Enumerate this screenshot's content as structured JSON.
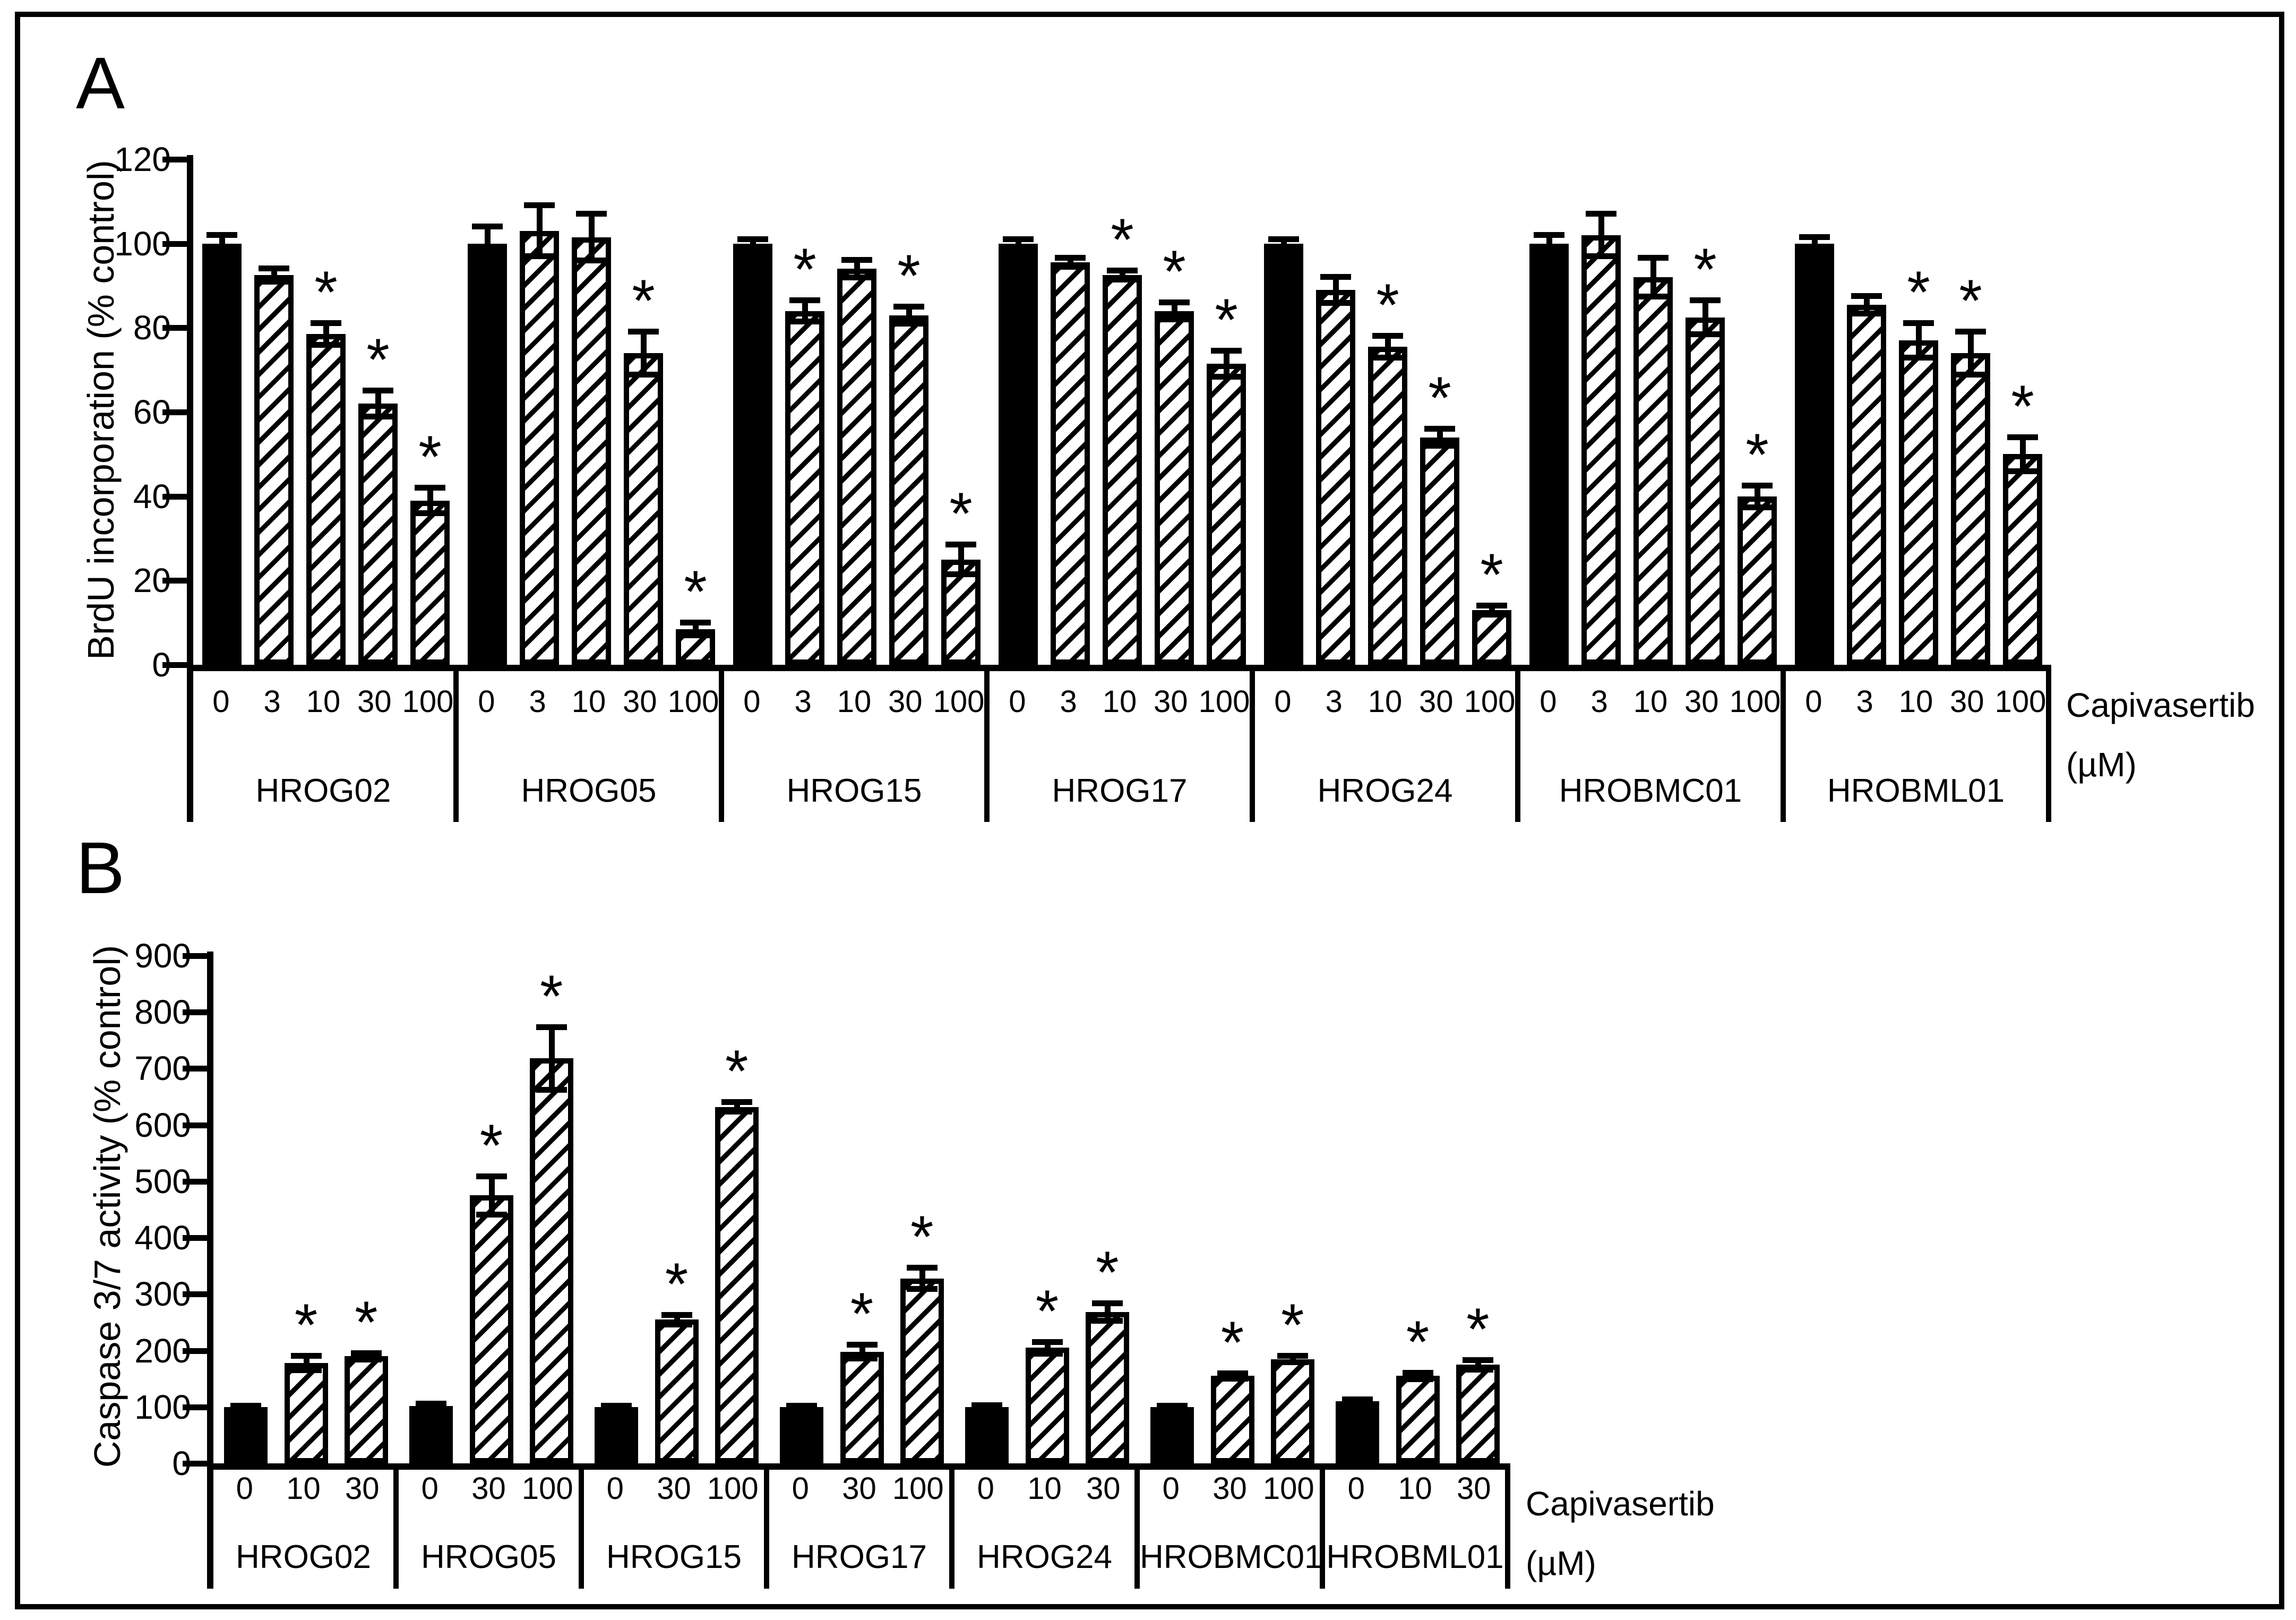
{
  "figure": {
    "panel_a_letter": "A",
    "panel_b_letter": "B",
    "x_unit_line1": "Capivasertib",
    "x_unit_line2": "(µM)",
    "ink_color": "#000000",
    "background_color": "#ffffff",
    "significance_marker": "*"
  },
  "chart_data": [
    {
      "type": "bar",
      "panel": "A",
      "title": "",
      "ylabel": "BrdU incorporation (% control)",
      "xlabel": "Capivasertib (µM)",
      "ylim": [
        0,
        120
      ],
      "yticks": [
        0,
        20,
        40,
        60,
        80,
        100,
        120
      ],
      "grid": false,
      "legend": "none",
      "bar_style_note": "dose 0 = solid black control bar; other doses = white bars with diagonal hatch; whiskers = SEM; * = significant",
      "groups": [
        {
          "name": "HROG02",
          "doses": [
            "0",
            "3",
            "10",
            "30",
            "100"
          ],
          "values": [
            100,
            92.5,
            78.5,
            62,
            39
          ],
          "errors": [
            2,
            1.5,
            2.5,
            3,
            3
          ],
          "significant": [
            false,
            false,
            true,
            true,
            true
          ]
        },
        {
          "name": "HROG05",
          "doses": [
            "0",
            "3",
            "10",
            "30",
            "100"
          ],
          "values": [
            100,
            103,
            101.5,
            74,
            8.5
          ],
          "errors": [
            4,
            6,
            5.5,
            5,
            1.5
          ],
          "significant": [
            false,
            false,
            false,
            true,
            true
          ]
        },
        {
          "name": "HROG15",
          "doses": [
            "0",
            "3",
            "10",
            "30",
            "100"
          ],
          "values": [
            100,
            84,
            94,
            83,
            25
          ],
          "errors": [
            1,
            2.5,
            2,
            2,
            3.5
          ],
          "significant": [
            false,
            true,
            false,
            true,
            true
          ]
        },
        {
          "name": "HROG17",
          "doses": [
            "0",
            "3",
            "10",
            "30",
            "100"
          ],
          "values": [
            100,
            95.5,
            92.5,
            84,
            71.5
          ],
          "errors": [
            1,
            1,
            1,
            2,
            3
          ],
          "significant": [
            false,
            false,
            true,
            true,
            true
          ]
        },
        {
          "name": "HROG24",
          "doses": [
            "0",
            "3",
            "10",
            "30",
            "100"
          ],
          "values": [
            100,
            89,
            75.5,
            54,
            13
          ],
          "errors": [
            1,
            3,
            2.5,
            2,
            1
          ],
          "significant": [
            false,
            false,
            true,
            true,
            true
          ]
        },
        {
          "name": "HROBMC01",
          "doses": [
            "0",
            "3",
            "10",
            "30",
            "100"
          ],
          "values": [
            100,
            102,
            92,
            82.5,
            40
          ],
          "errors": [
            2,
            5,
            4.5,
            4,
            2.5
          ],
          "significant": [
            false,
            false,
            false,
            true,
            true
          ]
        },
        {
          "name": "HROBML01",
          "doses": [
            "0",
            "3",
            "10",
            "30",
            "100"
          ],
          "values": [
            100,
            85.5,
            77,
            74,
            50
          ],
          "errors": [
            1.5,
            2,
            4,
            5,
            4
          ],
          "significant": [
            false,
            false,
            true,
            true,
            true
          ]
        }
      ]
    },
    {
      "type": "bar",
      "panel": "B",
      "title": "",
      "ylabel": "Caspase 3/7 activity (% control)",
      "xlabel": "Capivasertib (µM)",
      "ylim": [
        0,
        900
      ],
      "yticks": [
        0,
        100,
        200,
        300,
        400,
        500,
        600,
        700,
        800,
        900
      ],
      "grid": false,
      "legend": "none",
      "bar_style_note": "dose 0 = solid black control bar; other doses = white bars with diagonal hatch; whiskers = SEM; * = significant",
      "groups": [
        {
          "name": "HROG02",
          "doses": [
            "0",
            "10",
            "30"
          ],
          "values": [
            100,
            178,
            190
          ],
          "errors": [
            2,
            12,
            5
          ],
          "significant": [
            false,
            true,
            true
          ]
        },
        {
          "name": "HROG05",
          "doses": [
            "0",
            "30",
            "100"
          ],
          "values": [
            102,
            475,
            718
          ],
          "errors": [
            3,
            33,
            55
          ],
          "significant": [
            false,
            true,
            true
          ]
        },
        {
          "name": "HROG15",
          "doses": [
            "0",
            "30",
            "100"
          ],
          "values": [
            100,
            255,
            632
          ],
          "errors": [
            2,
            8,
            8
          ],
          "significant": [
            false,
            true,
            true
          ]
        },
        {
          "name": "HROG17",
          "doses": [
            "0",
            "30",
            "100"
          ],
          "values": [
            100,
            198,
            328
          ],
          "errors": [
            2,
            12,
            18
          ],
          "significant": [
            false,
            true,
            true
          ]
        },
        {
          "name": "HROG24",
          "doses": [
            "0",
            "10",
            "30"
          ],
          "values": [
            100,
            205,
            268
          ],
          "errors": [
            3,
            10,
            15
          ],
          "significant": [
            false,
            true,
            true
          ]
        },
        {
          "name": "HROBMC01",
          "doses": [
            "0",
            "30",
            "100"
          ],
          "values": [
            100,
            155,
            185
          ],
          "errors": [
            2,
            4,
            5
          ],
          "significant": [
            false,
            true,
            true
          ]
        },
        {
          "name": "HROBML01",
          "doses": [
            "0",
            "10",
            "30"
          ],
          "values": [
            110,
            155,
            175
          ],
          "errors": [
            3,
            5,
            8
          ],
          "significant": [
            false,
            true,
            true
          ]
        }
      ]
    }
  ]
}
